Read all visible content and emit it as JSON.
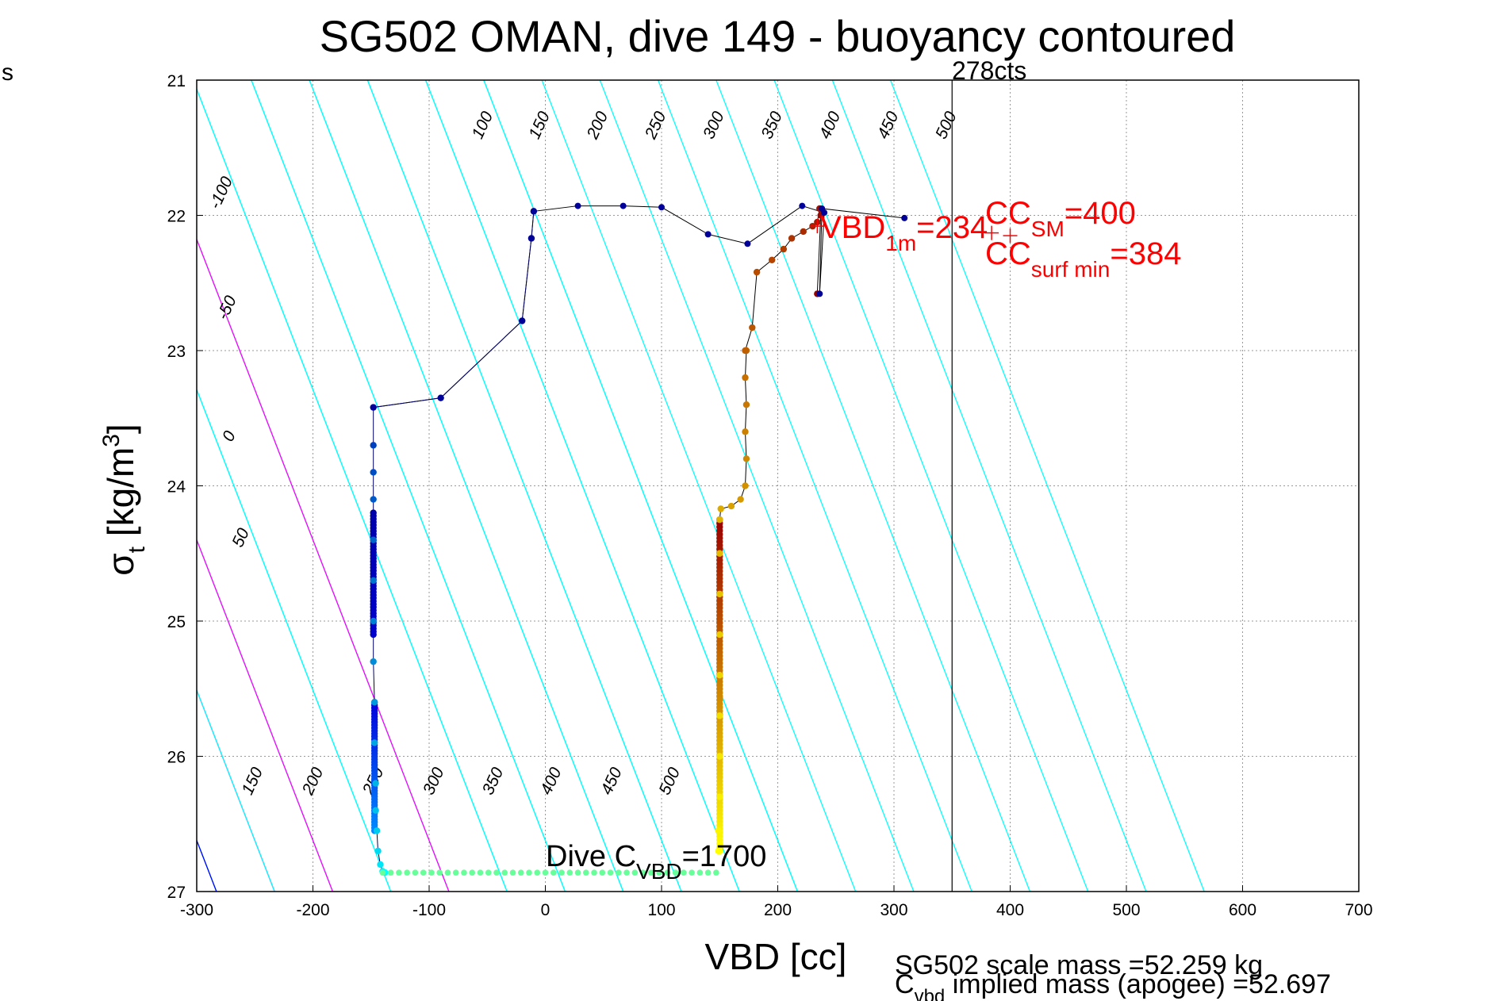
{
  "chart_data": {
    "type": "scatter",
    "title": "SG502 OMAN, dive 149 - buoyancy contoured",
    "xlabel": "VBD [cc]",
    "ylabel_main": "σ",
    "ylabel_sub": "t",
    "ylabel_units_pre": "[kg/m",
    "ylabel_units_sup": "3",
    "ylabel_units_post": "]",
    "xlim": [
      -300,
      700
    ],
    "ylim": [
      21,
      27
    ],
    "y_reversed": true,
    "grid": true,
    "xticks": [
      -300,
      -200,
      -100,
      0,
      100,
      200,
      300,
      400,
      500,
      600,
      700
    ],
    "yticks": [
      21,
      22,
      23,
      24,
      25,
      26,
      27
    ],
    "colors": {
      "cyan": "#00ffff",
      "magenta": "#ff00ff",
      "blue": "#0000ff",
      "red": "#ff0000",
      "path": "#000000"
    },
    "contours": {
      "slope_cc_per_sigma": -45,
      "ref_sigma": 27,
      "lines": [
        {
          "label": "150",
          "x_at_ref": -283,
          "color": "#00ffff"
        },
        {
          "label": "200",
          "x_at_ref": -233,
          "color": "#ff00ff"
        },
        {
          "label": "250",
          "x_at_ref": -183,
          "color": "#00ffff"
        },
        {
          "label": "300",
          "x_at_ref": -133,
          "color": "#00ffff"
        },
        {
          "label": "350",
          "x_at_ref": -83,
          "color": "#00ffff"
        },
        {
          "label": "400",
          "x_at_ref": -33,
          "color": "#00ffff"
        },
        {
          "label": "450",
          "x_at_ref": 17,
          "color": "#00ffff"
        },
        {
          "label": "500",
          "x_at_ref": 67,
          "color": "#00ffff"
        },
        {
          "label": "",
          "x_at_ref": 117,
          "color": "#00ffff"
        },
        {
          "label": "",
          "x_at_ref": 167,
          "color": "#00ffff"
        },
        {
          "label": "",
          "x_at_ref": 217,
          "color": "#00ffff"
        },
        {
          "label": "",
          "x_at_ref": 267,
          "color": "#00ffff"
        },
        {
          "label": "",
          "x_at_ref": 317,
          "color": "#00ffff"
        },
        {
          "label": "",
          "x_at_ref": 367,
          "color": "#00ffff"
        },
        {
          "label": "",
          "x_at_ref": 417,
          "color": "#00ffff"
        },
        {
          "label": "",
          "x_at_ref": 467,
          "color": "#00ffff"
        },
        {
          "label": "",
          "x_at_ref": 517,
          "color": "#00ffff"
        },
        {
          "label": "",
          "x_at_ref": 567,
          "color": "#00ffff"
        }
      ],
      "upper_lines": [
        {
          "label": "-100",
          "x_at_ref": -383,
          "color": "#00ffff"
        },
        {
          "label": "-50",
          "x_at_ref": -333,
          "color": "#00ffff"
        },
        {
          "label": "0",
          "x_at_ref": -283,
          "color": "#0000ff"
        },
        {
          "label": "50",
          "x_at_ref": -233,
          "color": "#00ffff"
        },
        {
          "label": "100",
          "x_at_ref": -183,
          "color": "#ff00ff"
        },
        {
          "label": "150",
          "x_at_ref": -133,
          "color": "#00ffff"
        },
        {
          "label": "200",
          "x_at_ref": -83,
          "color": "#ff00ff"
        },
        {
          "label": "250",
          "x_at_ref": -33,
          "color": "#00ffff"
        },
        {
          "label": "300",
          "x_at_ref": 17,
          "color": "#00ffff"
        },
        {
          "label": "350",
          "x_at_ref": 67,
          "color": "#00ffff"
        },
        {
          "label": "400",
          "x_at_ref": 117,
          "color": "#00ffff"
        },
        {
          "label": "450",
          "x_at_ref": 167,
          "color": "#00ffff"
        },
        {
          "label": "500",
          "x_at_ref": 217,
          "color": "#00ffff"
        }
      ]
    },
    "lower_contour_labels": [
      {
        "label": "150",
        "x": -248,
        "y": 26.2
      },
      {
        "label": "200",
        "x": -196,
        "y": 26.2
      },
      {
        "label": "250",
        "x": -144,
        "y": 26.2
      },
      {
        "label": "300",
        "x": -92,
        "y": 26.2
      },
      {
        "label": "350",
        "x": -41,
        "y": 26.2
      },
      {
        "label": "400",
        "x": 9,
        "y": 26.2
      },
      {
        "label": "450",
        "x": 61,
        "y": 26.2
      },
      {
        "label": "500",
        "x": 111,
        "y": 26.2
      }
    ],
    "upper_contour_labels": [
      {
        "label": "-100",
        "x": -275,
        "y": 21.85
      },
      {
        "label": "-50",
        "x": -270,
        "y": 22.7
      },
      {
        "label": "0",
        "x": -268,
        "y": 23.65
      },
      {
        "label": "50",
        "x": -258,
        "y": 24.4
      },
      {
        "label": "100",
        "x": -50,
        "y": 21.35
      },
      {
        "label": "150",
        "x": -1,
        "y": 21.35
      },
      {
        "label": "200",
        "x": 49,
        "y": 21.35
      },
      {
        "label": "250",
        "x": 99,
        "y": 21.35
      },
      {
        "label": "300",
        "x": 149,
        "y": 21.35
      },
      {
        "label": "350",
        "x": 199,
        "y": 21.35
      },
      {
        "label": "400",
        "x": 249,
        "y": 21.35
      },
      {
        "label": "450",
        "x": 299,
        "y": 21.35
      },
      {
        "label": "500",
        "x": 349,
        "y": 21.35
      }
    ],
    "series": [
      {
        "name": "dive",
        "color_start": "#0000aa",
        "color_end": "#00ffff",
        "x": [
          -10,
          -12,
          -20,
          -90,
          -148,
          -148,
          -148,
          -148,
          -148,
          -148,
          -148,
          -148,
          -147,
          -147,
          -146,
          -146,
          -145,
          -144,
          -142,
          -140,
          -138
        ],
        "y": [
          21.97,
          22.17,
          22.78,
          23.35,
          23.42,
          23.7,
          23.9,
          24.1,
          24.4,
          24.7,
          25.0,
          25.3,
          25.6,
          25.9,
          26.2,
          26.4,
          26.55,
          26.7,
          26.8,
          26.85,
          26.86
        ]
      },
      {
        "name": "bottom",
        "color": "#66ff99",
        "x": [
          -130,
          -110,
          -90,
          -70,
          -50,
          -30,
          -10,
          10,
          30,
          50,
          70,
          90,
          110,
          130,
          148
        ],
        "y": [
          26.86,
          26.86,
          26.86,
          26.86,
          26.86,
          26.86,
          26.86,
          26.86,
          26.86,
          26.86,
          26.86,
          26.86,
          26.86,
          26.86,
          26.85
        ]
      },
      {
        "name": "climb",
        "color_start": "#ffff00",
        "color_end": "#990000",
        "x": [
          149,
          149,
          150,
          150,
          150,
          150,
          150,
          150,
          150,
          150,
          151,
          160,
          168,
          172,
          173,
          172,
          173,
          172,
          173,
          172,
          178,
          182,
          195,
          205,
          212,
          222,
          230,
          234,
          236,
          237,
          234
        ],
        "y": [
          26.7,
          26.55,
          26.3,
          26.0,
          25.7,
          25.4,
          25.1,
          24.8,
          24.5,
          24.25,
          24.17,
          24.15,
          24.1,
          24.0,
          23.8,
          23.6,
          23.4,
          23.2,
          23.0,
          23.0,
          22.83,
          22.42,
          22.33,
          22.25,
          22.17,
          22.12,
          22.08,
          22.05,
          21.95,
          22.0,
          22.58
        ]
      },
      {
        "name": "surface-path",
        "color": "#000099",
        "x": [
          -148,
          -90,
          -20,
          -12,
          -10,
          28,
          67,
          100,
          140,
          174,
          221,
          240,
          236,
          238,
          309
        ],
        "y": [
          23.42,
          23.35,
          22.78,
          22.17,
          21.97,
          21.93,
          21.93,
          21.94,
          22.14,
          22.21,
          21.93,
          21.98,
          22.58,
          21.95,
          22.02
        ]
      }
    ],
    "annotations": {
      "vbd_1m_main": "VBD",
      "vbd_1m_sub": "1m",
      "vbd_1m_value": "=234",
      "cc_sm_main": "CC",
      "cc_sm_sub": "SM",
      "cc_sm_value": "=400",
      "cc_surf_main": "CC",
      "cc_surf_sub": "surf min",
      "cc_surf_value": "=384",
      "cts_label": "278cts",
      "dive_cvbd_main": "Dive C",
      "dive_cvbd_sub": "VBD",
      "dive_cvbd_value": "=1700",
      "scale_mass": "SG502 scale mass =52.259 kg",
      "implied_main": "C",
      "implied_sub": "vbd",
      "implied_rest": " implied mass (apogee) =52.697",
      "corner_s": "s",
      "vline_x": 350,
      "vbd_1m_x": 234,
      "vbd_1m_y": 22.08,
      "cc_sm_x": 400,
      "cc_sm_y": 22.15,
      "cc_surf_x": 384,
      "cc_surf_y": 22.13
    }
  }
}
